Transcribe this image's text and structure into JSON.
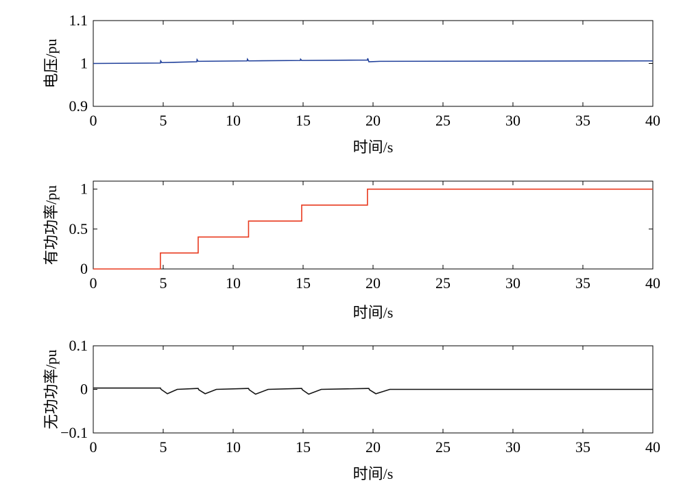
{
  "chart_data": [
    {
      "type": "line",
      "xlabel": "时间/s",
      "ylabel": "电压/pu",
      "xlim": [
        0,
        40
      ],
      "ylim": [
        0.9,
        1.1
      ],
      "xticks": [
        "0",
        "5",
        "10",
        "15",
        "20",
        "25",
        "30",
        "35",
        "40"
      ],
      "yticks": [
        "0.9",
        "1",
        "1.1"
      ],
      "grid": false,
      "series": [
        {
          "color": "#1f3f9a",
          "x": [
            0,
            4.8,
            4.82,
            4.9,
            7.4,
            7.42,
            7.5,
            11.0,
            11.02,
            11.1,
            14.8,
            14.82,
            14.9,
            19.6,
            19.62,
            19.7,
            20.5,
            40
          ],
          "y": [
            1.0,
            1.001,
            1.006,
            1.002,
            1.004,
            1.009,
            1.005,
            1.006,
            1.01,
            1.006,
            1.007,
            1.01,
            1.007,
            1.008,
            1.012,
            1.004,
            1.005,
            1.006
          ]
        }
      ]
    },
    {
      "type": "line",
      "xlabel": "时间/s",
      "ylabel": "有功功率/pu",
      "xlim": [
        0,
        40
      ],
      "ylim": [
        0,
        1.1
      ],
      "xticks": [
        "0",
        "5",
        "10",
        "15",
        "20",
        "25",
        "30",
        "35",
        "40"
      ],
      "yticks": [
        "0",
        "0.5",
        "1"
      ],
      "grid": false,
      "series": [
        {
          "color": "#e8391e",
          "x": [
            0,
            4.8,
            4.8,
            7.5,
            7.5,
            11.1,
            11.1,
            14.9,
            14.9,
            19.6,
            19.6,
            40
          ],
          "y": [
            0,
            0,
            0.2,
            0.2,
            0.4,
            0.4,
            0.6,
            0.6,
            0.8,
            0.8,
            1.0,
            1.0
          ]
        }
      ]
    },
    {
      "type": "line",
      "xlabel": "时间/s",
      "ylabel": "无功功率/pu",
      "xlim": [
        0,
        40
      ],
      "ylim": [
        -0.1,
        0.1
      ],
      "xticks": [
        "0",
        "5",
        "10",
        "15",
        "20",
        "25",
        "30",
        "35",
        "40"
      ],
      "yticks": [
        "−0.1",
        "0",
        "0.1"
      ],
      "grid": false,
      "series": [
        {
          "color": "#111111",
          "x": [
            0,
            4.8,
            4.85,
            5.3,
            6.0,
            7.4,
            7.5,
            7.55,
            8.0,
            8.8,
            11.0,
            11.1,
            11.15,
            11.6,
            12.5,
            14.8,
            14.9,
            14.95,
            15.4,
            16.3,
            19.6,
            19.7,
            19.75,
            20.2,
            21.2,
            40
          ],
          "y": [
            0.003,
            0.003,
            0.0,
            -0.01,
            0.0,
            0.002,
            0.002,
            -0.001,
            -0.01,
            0.0,
            0.002,
            0.002,
            -0.001,
            -0.011,
            0.0,
            0.002,
            0.002,
            -0.001,
            -0.011,
            0.0,
            0.002,
            0.002,
            -0.001,
            -0.01,
            0.0,
            0.0
          ]
        }
      ]
    }
  ]
}
